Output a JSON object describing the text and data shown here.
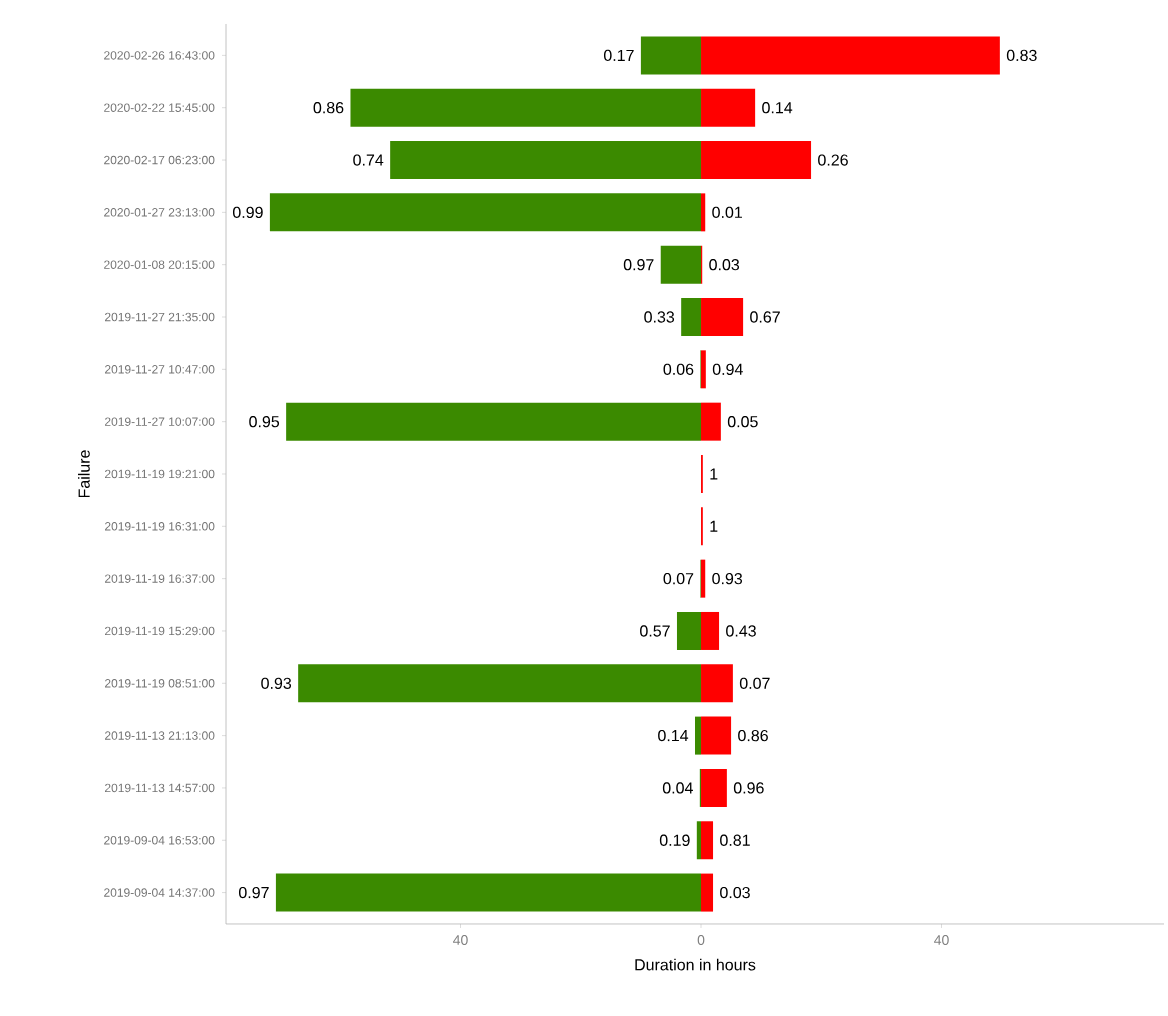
{
  "chart_data": {
    "type": "bar",
    "orientation": "horizontal",
    "stacked": true,
    "xlabel": "Duration in hours",
    "ylabel": "Failure",
    "categories": [
      "2020-02-26 16:43:00",
      "2020-02-22 15:45:00",
      "2020-02-17 06:23:00",
      "2020-01-27 23:13:00",
      "2020-01-08 20:15:00",
      "2019-11-27 21:35:00",
      "2019-11-27 10:47:00",
      "2019-11-27 10:07:00",
      "2019-11-19 19:21:00",
      "2019-11-19 16:31:00",
      "2019-11-19 16:37:00",
      "2019-11-19 15:29:00",
      "2019-11-19 08:51:00",
      "2019-11-13 21:13:00",
      "2019-11-13 14:57:00",
      "2019-09-04 16:53:00",
      "2019-09-04 14:37:00"
    ],
    "series": [
      {
        "color": "#3b8a00",
        "values": [
          -10,
          -58.3,
          -51.7,
          -71.7,
          -6.7,
          -3.3,
          -0.1,
          -69,
          0,
          0,
          -0.1,
          -4,
          -67,
          -1,
          -0.2,
          -0.7,
          -70.7
        ]
      },
      {
        "color": "#ff0000",
        "values": [
          49.7,
          9,
          18.3,
          0.7,
          0.2,
          7,
          0.8,
          3.3,
          0.3,
          0.3,
          0.7,
          3,
          5.3,
          5,
          4.3,
          2,
          2
        ]
      }
    ],
    "xlim": [
      -79,
      77
    ],
    "xticks": [
      {
        "value": -40,
        "label": "40"
      },
      0,
      40
    ],
    "annotations": [
      {
        "text": "0.17",
        "x": -10,
        "y": "2020-02-26 16:43:00"
      },
      {
        "text": "0.86",
        "x": -58.3,
        "y": "2020-02-22 15:45:00"
      },
      {
        "text": "0.74",
        "x": -51.7,
        "y": "2020-02-17 06:23:00"
      },
      {
        "text": "0.99",
        "x": -71.7,
        "y": "2020-01-27 23:13:00"
      },
      {
        "text": "0.97",
        "x": -6.7,
        "y": "2020-01-08 20:15:00"
      },
      {
        "text": "0.33",
        "x": -3.3,
        "y": "2019-11-27 21:35:00"
      },
      {
        "text": "0.06",
        "x": -0.1,
        "y": "2019-11-27 10:47:00"
      },
      {
        "text": "0.95",
        "x": -69,
        "y": "2019-11-27 10:07:00"
      },
      {
        "text": "0.07",
        "x": -0.1,
        "y": "2019-11-19 16:37:00"
      },
      {
        "text": "0.57",
        "x": -4,
        "y": "2019-11-19 15:29:00"
      },
      {
        "text": "0.93",
        "x": -67,
        "y": "2019-11-19 08:51:00"
      },
      {
        "text": "0.14",
        "x": -1,
        "y": "2019-11-13 21:13:00"
      },
      {
        "text": "0.04",
        "x": -0.2,
        "y": "2019-11-13 14:57:00"
      },
      {
        "text": "0.19",
        "x": -0.7,
        "y": "2019-09-04 16:53:00"
      },
      {
        "text": "0.97",
        "x": -70.7,
        "y": "2019-09-04 14:37:00"
      },
      {
        "text": "0.83",
        "x": 49.7,
        "y": "2020-02-26 16:43:00"
      },
      {
        "text": "0.14",
        "x": 9,
        "y": "2020-02-22 15:45:00"
      },
      {
        "text": "0.26",
        "x": 18.3,
        "y": "2020-02-17 06:23:00"
      },
      {
        "text": "0.01",
        "x": 0.7,
        "y": "2020-01-27 23:13:00"
      },
      {
        "text": "0.03",
        "x": 0.2,
        "y": "2020-01-08 20:15:00"
      },
      {
        "text": "0.67",
        "x": 7,
        "y": "2019-11-27 21:35:00"
      },
      {
        "text": "0.94",
        "x": 0.8,
        "y": "2019-11-27 10:47:00"
      },
      {
        "text": "0.05",
        "x": 3.3,
        "y": "2019-11-27 10:07:00"
      },
      {
        "text": "1",
        "x": 0.3,
        "y": "2019-11-19 19:21:00"
      },
      {
        "text": "1",
        "x": 0.3,
        "y": "2019-11-19 16:31:00"
      },
      {
        "text": "0.93",
        "x": 0.7,
        "y": "2019-11-19 16:37:00"
      },
      {
        "text": "0.43",
        "x": 3,
        "y": "2019-11-19 15:29:00"
      },
      {
        "text": "0.07",
        "x": 5.3,
        "y": "2019-11-19 08:51:00"
      },
      {
        "text": "0.86",
        "x": 5,
        "y": "2019-11-13 21:13:00"
      },
      {
        "text": "0.96",
        "x": 4.3,
        "y": "2019-11-13 14:57:00"
      },
      {
        "text": "0.81",
        "x": 2,
        "y": "2019-09-04 16:53:00"
      },
      {
        "text": "0.03",
        "x": 2,
        "y": "2019-09-04 14:37:00"
      }
    ]
  }
}
